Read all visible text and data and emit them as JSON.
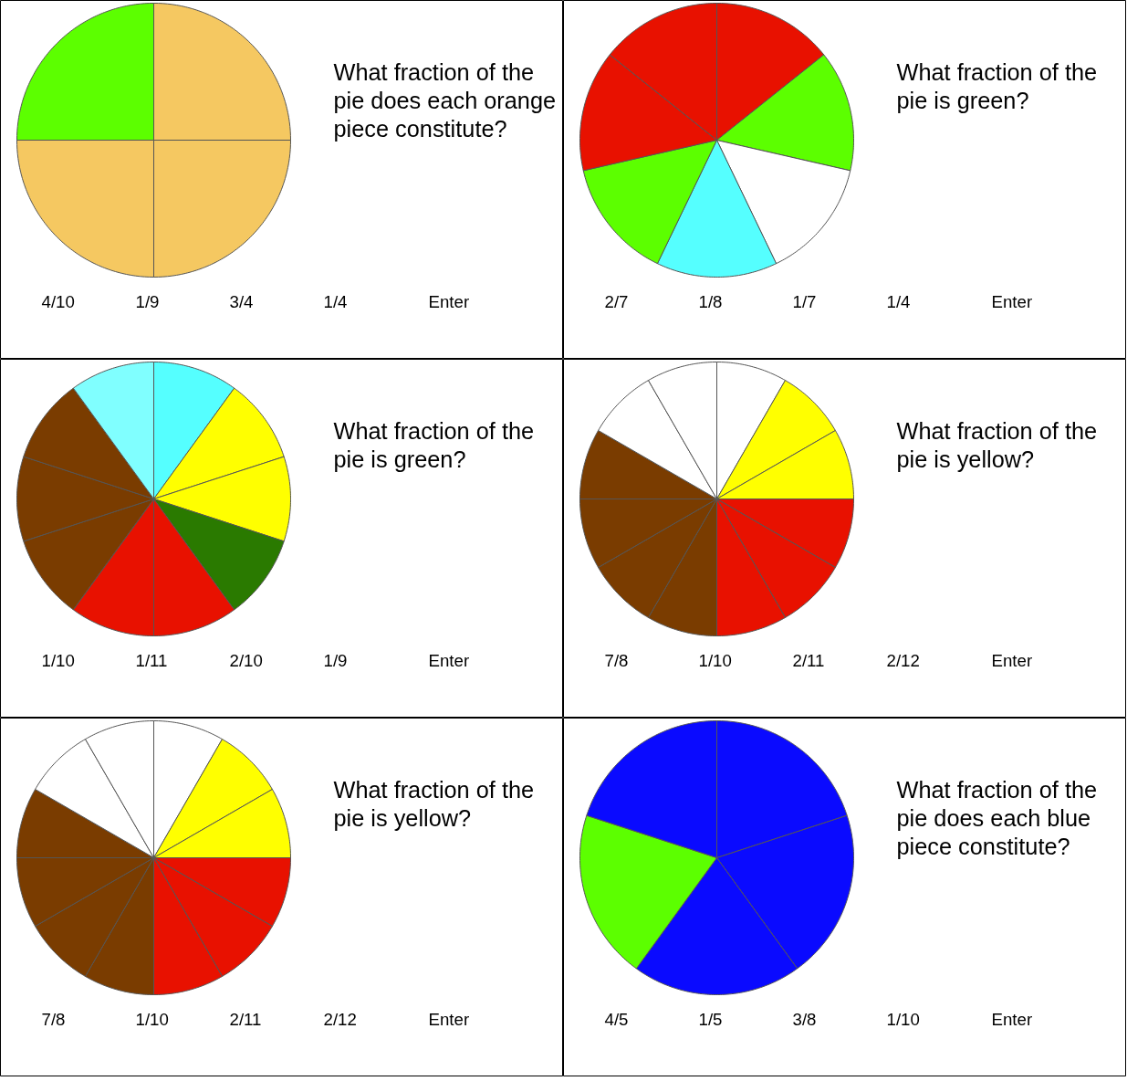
{
  "chart_data": [
    {
      "type": "pie",
      "title": "What fraction of the pie does each orange piece constitute?",
      "categories": [
        null,
        null,
        null,
        null
      ],
      "values": [
        25,
        25,
        25,
        25
      ],
      "colors": [
        "#f5c861",
        "#f5c861",
        "#f5c861",
        "#5cff00"
      ],
      "annotations": [
        "4/10",
        "1/9",
        "3/4",
        "1/4",
        "Enter"
      ]
    },
    {
      "type": "pie",
      "title": "What fraction of the pie is green?",
      "categories": [
        null,
        null,
        null,
        null,
        null,
        null,
        null
      ],
      "values": [
        14.29,
        14.29,
        14.29,
        14.29,
        14.29,
        14.29,
        14.29
      ],
      "colors": [
        "#e81100",
        "#5cff00",
        "#ffffff",
        "#55ffff",
        "#5cff00",
        "#e81100",
        "#e81100"
      ],
      "annotations": [
        "2/7",
        "1/8",
        "1/7",
        "1/4",
        "Enter"
      ]
    },
    {
      "type": "pie",
      "title": "What fraction of the pie is green?",
      "categories": [
        null,
        null,
        null,
        null,
        null,
        null,
        null,
        null,
        null,
        null
      ],
      "values": [
        10,
        10,
        10,
        10,
        10,
        10,
        10,
        10,
        10,
        10
      ],
      "colors": [
        "#55ffff",
        "#ffff00",
        "#ffff00",
        "#2a7a00",
        "#e81100",
        "#e81100",
        "#7a3c00",
        "#7a3c00",
        "#7a3c00",
        "#80ffff"
      ],
      "annotations": [
        "1/10",
        "1/11",
        "2/10",
        "1/9",
        "Enter"
      ]
    },
    {
      "type": "pie",
      "title": "What fraction of the pie is yellow?",
      "categories": [
        null,
        null,
        null,
        null,
        null,
        null,
        null,
        null,
        null,
        null,
        null,
        null
      ],
      "values": [
        8.33,
        8.33,
        8.33,
        8.33,
        8.33,
        8.33,
        8.33,
        8.33,
        8.33,
        8.33,
        8.33,
        8.33
      ],
      "colors": [
        "#ffffff",
        "#ffff00",
        "#ffff00",
        "#e81100",
        "#e81100",
        "#e81100",
        "#7a3c00",
        "#7a3c00",
        "#7a3c00",
        "#7a3c00",
        "#ffffff",
        "#ffffff"
      ],
      "annotations": [
        "7/8",
        "1/10",
        "2/11",
        "2/12",
        "Enter"
      ]
    },
    {
      "type": "pie",
      "title": "What fraction of the pie is yellow?",
      "categories": [
        null,
        null,
        null,
        null,
        null,
        null,
        null,
        null,
        null,
        null,
        null,
        null
      ],
      "values": [
        8.33,
        8.33,
        8.33,
        8.33,
        8.33,
        8.33,
        8.33,
        8.33,
        8.33,
        8.33,
        8.33,
        8.33
      ],
      "colors": [
        "#ffffff",
        "#ffff00",
        "#ffff00",
        "#e81100",
        "#e81100",
        "#e81100",
        "#7a3c00",
        "#7a3c00",
        "#7a3c00",
        "#7a3c00",
        "#ffffff",
        "#ffffff"
      ],
      "annotations": [
        "7/8",
        "1/10",
        "2/11",
        "2/12",
        "Enter"
      ]
    },
    {
      "type": "pie",
      "title": "What fraction of the pie does each blue piece constitute?",
      "categories": [
        null,
        null,
        null,
        null,
        null
      ],
      "values": [
        20,
        20,
        20,
        20,
        20
      ],
      "colors": [
        "#0a0aff",
        "#0a0aff",
        "#0a0aff",
        "#5cff00",
        "#0a0aff"
      ],
      "annotations": [
        "4/5",
        "1/5",
        "3/8",
        "1/10",
        "Enter"
      ]
    }
  ]
}
